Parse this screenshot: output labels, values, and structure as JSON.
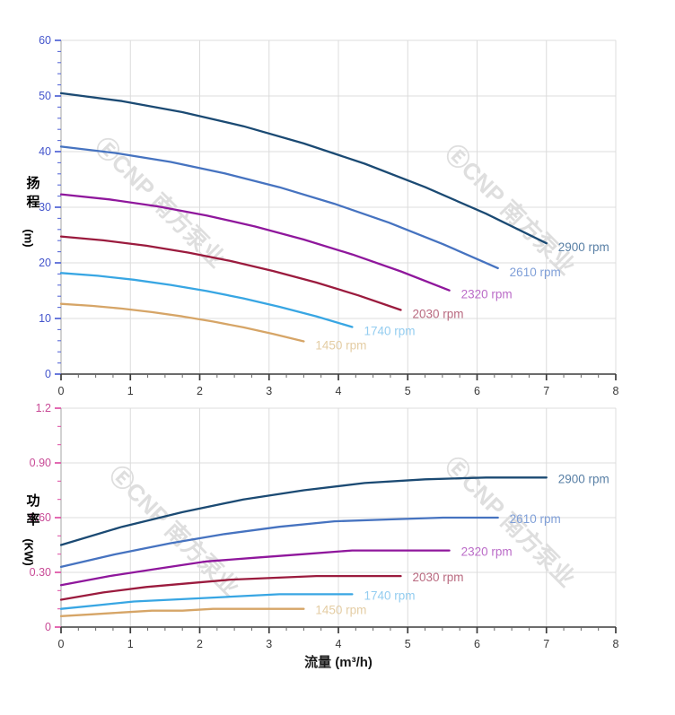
{
  "page": {
    "background": "#ffffff"
  },
  "watermark": {
    "text": "ⒺCNP 南方泵业",
    "color": "#dedede"
  },
  "axis_titles": {
    "head_cn": "扬程",
    "head_unit": "(m)",
    "power_cn": "功率",
    "power_unit": "(KW)",
    "flow": "流量 (m³/h)"
  },
  "colors": {
    "head_axis_text": "#4455cc",
    "head_axis_tick": "#5a6bd8",
    "power_axis_text": "#c84a96",
    "power_axis_tick": "#e05aaa",
    "x_axis_text": "#3a3a3a",
    "x_axis_line": "#3c3c3c",
    "y_axis_line": "#b5b5b5",
    "grid": "#dcdcdc"
  },
  "chart_data": [
    {
      "type": "line",
      "title": "",
      "xlabel": "流量 (m³/h)",
      "ylabel": "扬程 (m)",
      "xlim": [
        0,
        8
      ],
      "ylim": [
        0,
        60
      ],
      "x_ticks": [
        0,
        1,
        2,
        3,
        4,
        5,
        6,
        7,
        8
      ],
      "x_tick_labels": [
        "0",
        "1",
        "2",
        "3",
        "4",
        "5",
        "6",
        "7",
        "8"
      ],
      "x_minor_step": 0.25,
      "y_ticks": [
        0,
        10,
        20,
        30,
        40,
        50,
        60
      ],
      "y_tick_labels": [
        "0",
        "10",
        "20",
        "30",
        "40",
        "50",
        "60"
      ],
      "y_minor_step": 2,
      "grid": true,
      "legend_position": "end-of-curve",
      "series": [
        {
          "name": "2900 rpm",
          "color": "#1b4a73",
          "label_color": "#587fa5",
          "points": [
            [
              0,
              50.5
            ],
            [
              0.88,
              49.08
            ],
            [
              1.75,
              47.1
            ],
            [
              2.63,
              44.56
            ],
            [
              3.5,
              41.47
            ],
            [
              4.38,
              37.82
            ],
            [
              5.25,
              33.61
            ],
            [
              6.13,
              28.84
            ],
            [
              7,
              23.51
            ]
          ]
        },
        {
          "name": "2610 rpm",
          "color": "#4673c0",
          "label_color": "#7f9fd8",
          "points": [
            [
              0,
              40.91
            ],
            [
              0.79,
              39.75
            ],
            [
              1.58,
              38.15
            ],
            [
              2.36,
              36.1
            ],
            [
              3.15,
              33.59
            ],
            [
              3.94,
              30.63
            ],
            [
              4.73,
              27.22
            ],
            [
              5.51,
              23.36
            ],
            [
              6.3,
              19.05
            ]
          ]
        },
        {
          "name": "2320 rpm",
          "color": "#8f179c",
          "label_color": "#bb6cc8",
          "points": [
            [
              0,
              32.32
            ],
            [
              0.7,
              31.41
            ],
            [
              1.4,
              30.14
            ],
            [
              2.1,
              28.52
            ],
            [
              2.8,
              26.54
            ],
            [
              3.5,
              24.2
            ],
            [
              4.2,
              21.51
            ],
            [
              4.9,
              18.46
            ],
            [
              5.6,
              15.05
            ]
          ]
        },
        {
          "name": "2030 rpm",
          "color": "#9b1b3e",
          "label_color": "#b96a80",
          "points": [
            [
              0,
              24.75
            ],
            [
              0.61,
              24.05
            ],
            [
              1.23,
              23.08
            ],
            [
              1.84,
              21.84
            ],
            [
              2.45,
              20.32
            ],
            [
              3.06,
              18.53
            ],
            [
              3.68,
              16.47
            ],
            [
              4.29,
              14.14
            ],
            [
              4.9,
              11.53
            ]
          ]
        },
        {
          "name": "1740 rpm",
          "color": "#38a6e3",
          "label_color": "#94cdf0",
          "points": [
            [
              0,
              18.18
            ],
            [
              0.53,
              17.67
            ],
            [
              1.05,
              16.96
            ],
            [
              1.58,
              16.04
            ],
            [
              2.1,
              14.93
            ],
            [
              2.63,
              13.61
            ],
            [
              3.15,
              12.1
            ],
            [
              3.68,
              10.38
            ],
            [
              4.2,
              8.47
            ]
          ]
        },
        {
          "name": "1450 rpm",
          "color": "#d6a567",
          "label_color": "#e4cda4",
          "points": [
            [
              0,
              12.63
            ],
            [
              0.44,
              12.27
            ],
            [
              0.88,
              11.78
            ],
            [
              1.31,
              11.14
            ],
            [
              1.75,
              10.37
            ],
            [
              2.19,
              9.45
            ],
            [
              2.63,
              8.4
            ],
            [
              3.06,
              7.21
            ],
            [
              3.5,
              5.88
            ]
          ]
        }
      ]
    },
    {
      "type": "line",
      "title": "",
      "xlabel": "流量 (m³/h)",
      "ylabel": "功率 (KW)",
      "xlim": [
        0,
        8
      ],
      "ylim": [
        0,
        1.2
      ],
      "x_ticks": [
        0,
        1,
        2,
        3,
        4,
        5,
        6,
        7,
        8
      ],
      "x_tick_labels": [
        "0",
        "1",
        "2",
        "3",
        "4",
        "5",
        "6",
        "7",
        "8"
      ],
      "x_minor_step": 0.25,
      "y_ticks": [
        0,
        0.3,
        0.6,
        0.9,
        1.2
      ],
      "y_tick_labels": [
        "0",
        "0.30",
        "0.60",
        "0.90",
        "1.2"
      ],
      "y_minor_step": 0.1,
      "grid": true,
      "legend_position": "end-of-curve",
      "series": [
        {
          "name": "2900 rpm",
          "color": "#1b4a73",
          "label_color": "#587fa5",
          "points": [
            [
              0,
              0.45
            ],
            [
              0.88,
              0.55
            ],
            [
              1.75,
              0.63
            ],
            [
              2.63,
              0.7
            ],
            [
              3.5,
              0.75
            ],
            [
              4.38,
              0.79
            ],
            [
              5.25,
              0.81
            ],
            [
              6.13,
              0.82
            ],
            [
              7,
              0.82
            ]
          ]
        },
        {
          "name": "2610 rpm",
          "color": "#4673c0",
          "label_color": "#7f9fd8",
          "points": [
            [
              0,
              0.33
            ],
            [
              0.79,
              0.4
            ],
            [
              1.58,
              0.46
            ],
            [
              2.36,
              0.51
            ],
            [
              3.15,
              0.55
            ],
            [
              3.94,
              0.58
            ],
            [
              4.73,
              0.59
            ],
            [
              5.51,
              0.6
            ],
            [
              6.3,
              0.6
            ]
          ]
        },
        {
          "name": "2320 rpm",
          "color": "#8f179c",
          "label_color": "#bb6cc8",
          "points": [
            [
              0,
              0.23
            ],
            [
              0.7,
              0.28
            ],
            [
              1.4,
              0.32
            ],
            [
              2.1,
              0.36
            ],
            [
              2.8,
              0.38
            ],
            [
              3.5,
              0.4
            ],
            [
              4.2,
              0.42
            ],
            [
              4.9,
              0.42
            ],
            [
              5.6,
              0.42
            ]
          ]
        },
        {
          "name": "2030 rpm",
          "color": "#9b1b3e",
          "label_color": "#b96a80",
          "points": [
            [
              0,
              0.15
            ],
            [
              0.61,
              0.19
            ],
            [
              1.23,
              0.22
            ],
            [
              1.84,
              0.24
            ],
            [
              2.45,
              0.26
            ],
            [
              3.06,
              0.27
            ],
            [
              3.68,
              0.28
            ],
            [
              4.29,
              0.28
            ],
            [
              4.9,
              0.28
            ]
          ]
        },
        {
          "name": "1740 rpm",
          "color": "#38a6e3",
          "label_color": "#94cdf0",
          "points": [
            [
              0,
              0.1
            ],
            [
              0.53,
              0.12
            ],
            [
              1.05,
              0.14
            ],
            [
              1.58,
              0.15
            ],
            [
              2.1,
              0.16
            ],
            [
              2.63,
              0.17
            ],
            [
              3.15,
              0.18
            ],
            [
              3.68,
              0.18
            ],
            [
              4.2,
              0.18
            ]
          ]
        },
        {
          "name": "1450 rpm",
          "color": "#d6a567",
          "label_color": "#e4cda4",
          "points": [
            [
              0,
              0.06
            ],
            [
              0.44,
              0.07
            ],
            [
              0.88,
              0.08
            ],
            [
              1.31,
              0.09
            ],
            [
              1.75,
              0.09
            ],
            [
              2.19,
              0.1
            ],
            [
              2.63,
              0.1
            ],
            [
              3.06,
              0.1
            ],
            [
              3.5,
              0.1
            ]
          ]
        }
      ]
    }
  ]
}
